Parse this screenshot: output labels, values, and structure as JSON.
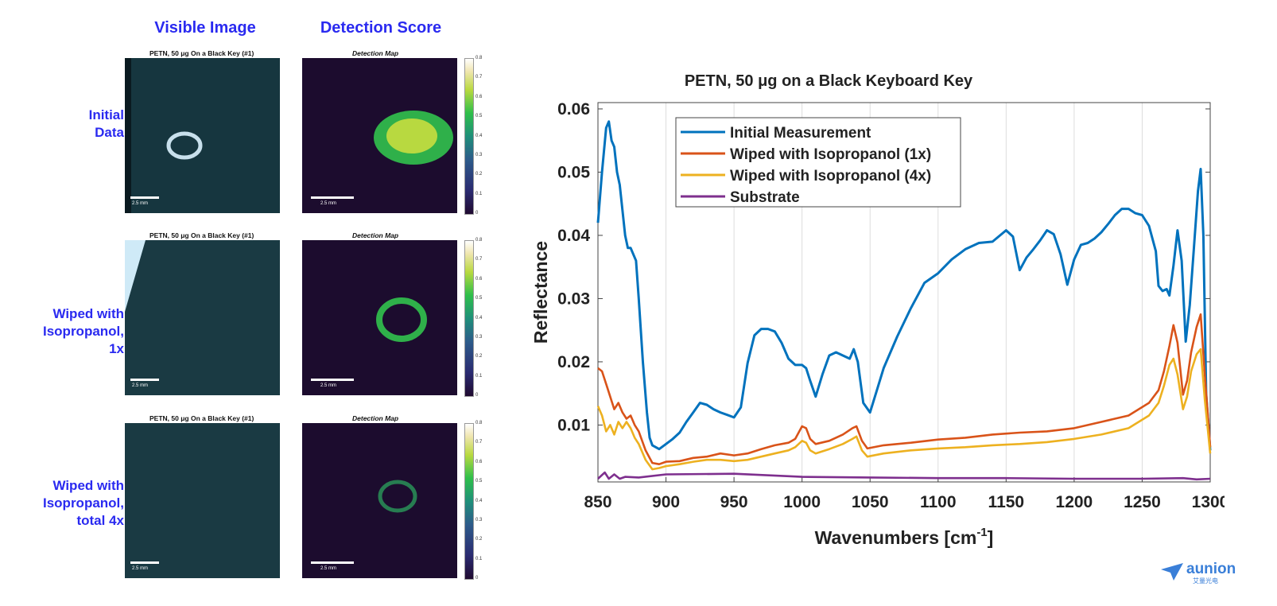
{
  "left_panel": {
    "column_headers": [
      "Visible Image",
      "Detection Score"
    ],
    "rows": [
      {
        "label": [
          "Initial",
          "Data"
        ],
        "visible_title": "PETN, 50 μg On a Black Key (#1)",
        "detection_title": "Detection Map",
        "scale": "2.5 mm"
      },
      {
        "label": [
          "Wiped with",
          "Isopropanol,",
          "1x"
        ],
        "visible_title": "PETN, 50 μg On a Black Key (#1)",
        "detection_title": "Detection Map",
        "scale": "2.5 mm"
      },
      {
        "label": [
          "Wiped with",
          "Isopropanol,",
          "total 4x"
        ],
        "visible_title": "PETN, 50 μg On a Black Key (#1)",
        "detection_title": "Detection Map",
        "scale": "2.5 mm"
      }
    ],
    "colorbar_ticks": [
      "0.8",
      "0.7",
      "0.6",
      "0.5",
      "0.4",
      "0.3",
      "0.2",
      "0.1",
      "0"
    ]
  },
  "chart_data": {
    "type": "line",
    "title": "PETN, 50 μg on a Black Keyboard Key",
    "xlabel": "Wavenumbers [cm",
    "xlabel_sup": "-1",
    "xlabel_tail": "]",
    "ylabel": "Reflectance",
    "xlim": [
      850,
      1300
    ],
    "ylim": [
      0.001,
      0.061
    ],
    "xticks": [
      850,
      900,
      950,
      1000,
      1050,
      1100,
      1150,
      1200,
      1250,
      1300
    ],
    "yticks": [
      0.01,
      0.02,
      0.03,
      0.04,
      0.05,
      0.06
    ],
    "ytick_labels": [
      "0.01",
      "0.02",
      "0.03",
      "0.04",
      "0.05",
      "0.06"
    ],
    "grid": "vertical",
    "legend": "top-left",
    "series": [
      {
        "name": "Initial Measurement",
        "color": "#0072BD",
        "x": [
          850,
          853,
          856,
          858,
          860,
          862,
          864,
          866,
          868,
          870,
          872,
          874,
          876,
          878,
          880,
          883,
          886,
          888,
          890,
          895,
          900,
          905,
          910,
          915,
          920,
          925,
          930,
          935,
          940,
          945,
          950,
          955,
          960,
          965,
          970,
          975,
          980,
          985,
          990,
          995,
          1000,
          1003,
          1006,
          1010,
          1015,
          1020,
          1025,
          1030,
          1035,
          1038,
          1041,
          1045,
          1050,
          1055,
          1060,
          1070,
          1080,
          1090,
          1100,
          1110,
          1120,
          1130,
          1140,
          1150,
          1155,
          1160,
          1165,
          1170,
          1175,
          1180,
          1185,
          1190,
          1195,
          1200,
          1205,
          1210,
          1215,
          1220,
          1225,
          1230,
          1235,
          1240,
          1245,
          1250,
          1255,
          1260,
          1262,
          1265,
          1268,
          1270,
          1273,
          1276,
          1279,
          1282,
          1285,
          1288,
          1291,
          1293,
          1295,
          1297,
          1300
        ],
        "y": [
          0.042,
          0.05,
          0.057,
          0.058,
          0.055,
          0.054,
          0.05,
          0.048,
          0.044,
          0.04,
          0.038,
          0.038,
          0.037,
          0.036,
          0.03,
          0.02,
          0.012,
          0.008,
          0.0068,
          0.0062,
          0.007,
          0.0078,
          0.0088,
          0.0105,
          0.012,
          0.0135,
          0.0132,
          0.0125,
          0.012,
          0.0116,
          0.0112,
          0.0128,
          0.0198,
          0.0242,
          0.0252,
          0.0252,
          0.0248,
          0.023,
          0.0205,
          0.0195,
          0.0195,
          0.019,
          0.017,
          0.0145,
          0.018,
          0.021,
          0.0215,
          0.021,
          0.0205,
          0.022,
          0.02,
          0.0135,
          0.012,
          0.0155,
          0.019,
          0.024,
          0.0285,
          0.0325,
          0.034,
          0.0362,
          0.0378,
          0.0388,
          0.039,
          0.0408,
          0.0398,
          0.0345,
          0.0365,
          0.0378,
          0.0392,
          0.0408,
          0.0402,
          0.037,
          0.0322,
          0.0362,
          0.0385,
          0.0388,
          0.0395,
          0.0405,
          0.0418,
          0.0432,
          0.0442,
          0.0442,
          0.0435,
          0.0432,
          0.0415,
          0.0375,
          0.032,
          0.0312,
          0.0315,
          0.0305,
          0.0352,
          0.0408,
          0.036,
          0.0232,
          0.029,
          0.038,
          0.047,
          0.0505,
          0.04,
          0.015,
          0.006
        ]
      },
      {
        "name": "Wiped with Isopropanol (1x)",
        "color": "#D95319",
        "x": [
          850,
          853,
          856,
          859,
          862,
          865,
          868,
          871,
          874,
          877,
          880,
          885,
          890,
          895,
          900,
          910,
          920,
          930,
          940,
          950,
          960,
          970,
          980,
          990,
          995,
          1000,
          1003,
          1006,
          1010,
          1020,
          1030,
          1037,
          1040,
          1044,
          1048,
          1060,
          1080,
          1100,
          1120,
          1140,
          1160,
          1180,
          1200,
          1220,
          1240,
          1255,
          1262,
          1266,
          1270,
          1273,
          1276,
          1280,
          1283,
          1286,
          1290,
          1293,
          1296,
          1300
        ],
        "y": [
          0.019,
          0.0185,
          0.0165,
          0.0145,
          0.0125,
          0.0135,
          0.012,
          0.011,
          0.0115,
          0.01,
          0.009,
          0.006,
          0.004,
          0.0038,
          0.0042,
          0.0043,
          0.0048,
          0.005,
          0.0055,
          0.0052,
          0.0055,
          0.0062,
          0.0068,
          0.0072,
          0.0078,
          0.0098,
          0.0095,
          0.0078,
          0.007,
          0.0075,
          0.0085,
          0.0095,
          0.0098,
          0.0075,
          0.0063,
          0.0068,
          0.0072,
          0.0077,
          0.008,
          0.0085,
          0.0088,
          0.009,
          0.0095,
          0.0105,
          0.0115,
          0.0135,
          0.0155,
          0.0185,
          0.0225,
          0.0258,
          0.023,
          0.0148,
          0.017,
          0.0215,
          0.0255,
          0.0275,
          0.018,
          0.0065
        ]
      },
      {
        "name": "Wiped with Isopropanol (4x)",
        "color": "#EDB120",
        "x": [
          850,
          853,
          856,
          859,
          862,
          865,
          868,
          871,
          874,
          877,
          880,
          885,
          890,
          895,
          900,
          910,
          920,
          930,
          940,
          950,
          960,
          970,
          980,
          990,
          995,
          1000,
          1003,
          1006,
          1010,
          1020,
          1030,
          1037,
          1040,
          1044,
          1048,
          1060,
          1080,
          1100,
          1120,
          1140,
          1160,
          1180,
          1200,
          1220,
          1240,
          1255,
          1262,
          1266,
          1270,
          1273,
          1276,
          1280,
          1283,
          1286,
          1290,
          1293,
          1296,
          1300
        ],
        "y": [
          0.013,
          0.0115,
          0.009,
          0.01,
          0.0085,
          0.0105,
          0.0095,
          0.0105,
          0.0095,
          0.008,
          0.007,
          0.0045,
          0.003,
          0.0032,
          0.0035,
          0.0038,
          0.0042,
          0.0045,
          0.0045,
          0.0043,
          0.0045,
          0.005,
          0.0055,
          0.006,
          0.0065,
          0.0075,
          0.0072,
          0.006,
          0.0055,
          0.0062,
          0.007,
          0.0078,
          0.0082,
          0.006,
          0.005,
          0.0055,
          0.006,
          0.0063,
          0.0065,
          0.0068,
          0.007,
          0.0073,
          0.0078,
          0.0085,
          0.0095,
          0.0115,
          0.0135,
          0.0162,
          0.0195,
          0.0205,
          0.018,
          0.0125,
          0.0145,
          0.0185,
          0.0212,
          0.022,
          0.014,
          0.0055
        ]
      },
      {
        "name": "Substrate",
        "color": "#7E2F8E",
        "x": [
          850,
          855,
          858,
          862,
          866,
          870,
          880,
          900,
          950,
          1000,
          1050,
          1100,
          1150,
          1200,
          1250,
          1280,
          1290,
          1300
        ],
        "y": [
          0.0015,
          0.0025,
          0.0015,
          0.0022,
          0.0015,
          0.0018,
          0.0017,
          0.0022,
          0.0023,
          0.0018,
          0.0017,
          0.0016,
          0.0016,
          0.0015,
          0.0015,
          0.0016,
          0.0014,
          0.0015
        ]
      }
    ]
  },
  "branding": {
    "logo_text": "aunion",
    "logo_subtext": "艾量光电",
    "color": "#3a7fd8"
  }
}
